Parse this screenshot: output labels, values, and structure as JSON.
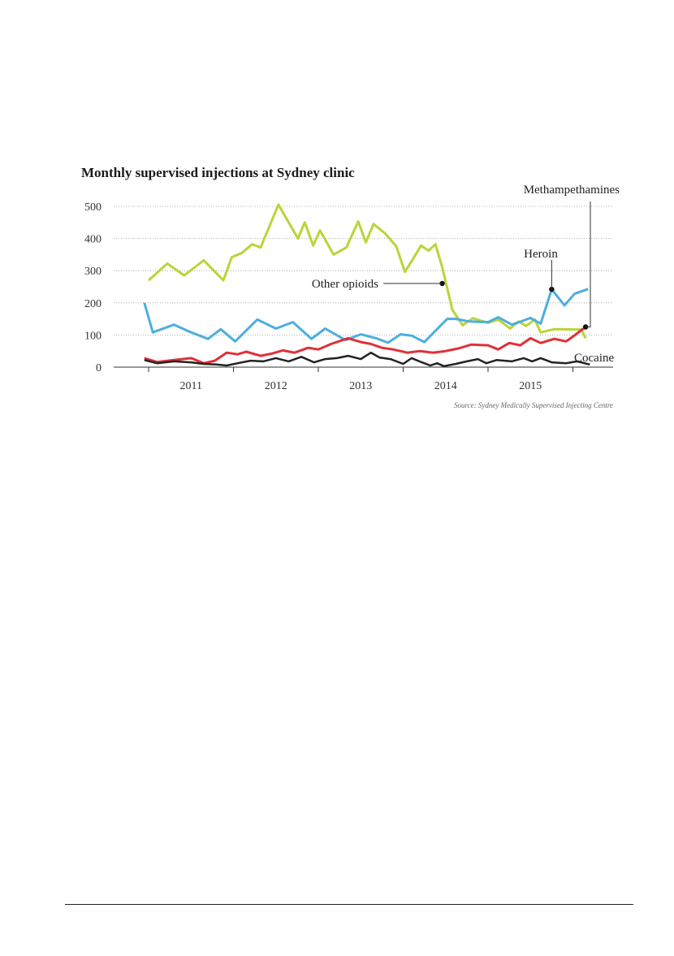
{
  "chart_data": {
    "type": "line",
    "title": "Monthly supervised injections at Sydney clinic",
    "source": "Source: Sydney Medically Supervised Injecting Centre",
    "ylim": [
      0,
      520
    ],
    "xlim": [
      2010.5,
      2016.0
    ],
    "yticks": [
      0,
      100,
      200,
      300,
      400,
      500
    ],
    "xticks": [
      {
        "label": "2011",
        "x": 2011.0
      },
      {
        "label": "2012",
        "x": 2012.0
      },
      {
        "label": "2013",
        "x": 2013.0
      },
      {
        "label": "2014",
        "x": 2014.0
      },
      {
        "label": "2015",
        "x": 2015.0
      }
    ],
    "grid": true,
    "series": [
      {
        "name": "Other opioids",
        "color": "#b9d538",
        "points": [
          [
            2010.5,
            270
          ],
          [
            2010.72,
            322
          ],
          [
            2010.92,
            285
          ],
          [
            2011.15,
            332
          ],
          [
            2011.38,
            270
          ],
          [
            2011.48,
            342
          ],
          [
            2011.6,
            355
          ],
          [
            2011.72,
            382
          ],
          [
            2011.82,
            372
          ],
          [
            2012.03,
            505
          ],
          [
            2012.26,
            400
          ],
          [
            2012.34,
            450
          ],
          [
            2012.44,
            378
          ],
          [
            2012.52,
            425
          ],
          [
            2012.68,
            350
          ],
          [
            2012.83,
            372
          ],
          [
            2012.97,
            453
          ],
          [
            2013.06,
            388
          ],
          [
            2013.15,
            445
          ],
          [
            2013.29,
            415
          ],
          [
            2013.42,
            375
          ],
          [
            2013.52,
            296
          ],
          [
            2013.62,
            338
          ],
          [
            2013.71,
            378
          ],
          [
            2013.8,
            362
          ],
          [
            2013.88,
            382
          ],
          [
            2013.96,
            310
          ],
          [
            2014.08,
            178
          ],
          [
            2014.2,
            130
          ],
          [
            2014.32,
            152
          ],
          [
            2014.5,
            138
          ],
          [
            2014.62,
            148
          ],
          [
            2014.76,
            120
          ],
          [
            2014.86,
            142
          ],
          [
            2014.95,
            128
          ],
          [
            2015.05,
            148
          ],
          [
            2015.12,
            108
          ],
          [
            2015.28,
            118
          ],
          [
            2015.6,
            117
          ],
          [
            2015.65,
            90
          ]
        ]
      },
      {
        "name": "Heroin",
        "color": "#4daedf",
        "points": [
          [
            2010.45,
            200
          ],
          [
            2010.55,
            108
          ],
          [
            2010.8,
            132
          ],
          [
            2011.0,
            108
          ],
          [
            2011.2,
            88
          ],
          [
            2011.35,
            118
          ],
          [
            2011.52,
            80
          ],
          [
            2011.78,
            148
          ],
          [
            2012.0,
            120
          ],
          [
            2012.2,
            140
          ],
          [
            2012.42,
            88
          ],
          [
            2012.58,
            120
          ],
          [
            2012.82,
            84
          ],
          [
            2013.0,
            102
          ],
          [
            2013.18,
            90
          ],
          [
            2013.32,
            76
          ],
          [
            2013.47,
            102
          ],
          [
            2013.6,
            98
          ],
          [
            2013.75,
            78
          ],
          [
            2014.02,
            150
          ],
          [
            2014.12,
            150
          ],
          [
            2014.28,
            142
          ],
          [
            2014.5,
            140
          ],
          [
            2014.62,
            155
          ],
          [
            2014.78,
            132
          ],
          [
            2014.9,
            143
          ],
          [
            2015.0,
            153
          ],
          [
            2015.12,
            135
          ],
          [
            2015.25,
            242
          ],
          [
            2015.4,
            192
          ],
          [
            2015.52,
            228
          ],
          [
            2015.68,
            243
          ]
        ]
      },
      {
        "name": "Methampethamines",
        "color": "#e03039",
        "points": [
          [
            2010.45,
            28
          ],
          [
            2010.6,
            16
          ],
          [
            2010.8,
            22
          ],
          [
            2011.0,
            28
          ],
          [
            2011.15,
            12
          ],
          [
            2011.28,
            20
          ],
          [
            2011.42,
            45
          ],
          [
            2011.55,
            40
          ],
          [
            2011.65,
            48
          ],
          [
            2011.82,
            35
          ],
          [
            2011.95,
            42
          ],
          [
            2012.08,
            52
          ],
          [
            2012.22,
            45
          ],
          [
            2012.38,
            60
          ],
          [
            2012.5,
            55
          ],
          [
            2012.65,
            72
          ],
          [
            2012.85,
            90
          ],
          [
            2013.0,
            78
          ],
          [
            2013.12,
            72
          ],
          [
            2013.25,
            60
          ],
          [
            2013.38,
            55
          ],
          [
            2013.55,
            45
          ],
          [
            2013.7,
            50
          ],
          [
            2013.85,
            45
          ],
          [
            2014.0,
            50
          ],
          [
            2014.15,
            58
          ],
          [
            2014.3,
            70
          ],
          [
            2014.5,
            68
          ],
          [
            2014.62,
            55
          ],
          [
            2014.75,
            75
          ],
          [
            2014.88,
            68
          ],
          [
            2015.0,
            90
          ],
          [
            2015.12,
            75
          ],
          [
            2015.28,
            88
          ],
          [
            2015.42,
            80
          ],
          [
            2015.5,
            95
          ],
          [
            2015.65,
            125
          ]
        ]
      },
      {
        "name": "Cocaine",
        "color": "#222222",
        "points": [
          [
            2010.45,
            22
          ],
          [
            2010.6,
            12
          ],
          [
            2010.8,
            18
          ],
          [
            2011.0,
            15
          ],
          [
            2011.15,
            10
          ],
          [
            2011.3,
            8
          ],
          [
            2011.42,
            5
          ],
          [
            2011.55,
            12
          ],
          [
            2011.7,
            20
          ],
          [
            2011.85,
            18
          ],
          [
            2012.0,
            28
          ],
          [
            2012.15,
            18
          ],
          [
            2012.3,
            32
          ],
          [
            2012.45,
            15
          ],
          [
            2012.58,
            25
          ],
          [
            2012.72,
            28
          ],
          [
            2012.85,
            35
          ],
          [
            2013.0,
            25
          ],
          [
            2013.12,
            45
          ],
          [
            2013.22,
            30
          ],
          [
            2013.35,
            25
          ],
          [
            2013.5,
            10
          ],
          [
            2013.6,
            28
          ],
          [
            2013.72,
            15
          ],
          [
            2013.82,
            5
          ],
          [
            2013.9,
            12
          ],
          [
            2013.98,
            3
          ],
          [
            2014.12,
            10
          ],
          [
            2014.25,
            18
          ],
          [
            2014.38,
            25
          ],
          [
            2014.48,
            12
          ],
          [
            2014.6,
            22
          ],
          [
            2014.78,
            18
          ],
          [
            2014.92,
            28
          ],
          [
            2015.02,
            18
          ],
          [
            2015.12,
            28
          ],
          [
            2015.25,
            15
          ],
          [
            2015.42,
            12
          ],
          [
            2015.55,
            18
          ],
          [
            2015.7,
            8
          ]
        ]
      }
    ],
    "annotations": [
      {
        "label": "Methampethamines",
        "series": 2,
        "point": [
          2015.65,
          125
        ]
      },
      {
        "label": "Heroin",
        "series": 1,
        "point": [
          2015.25,
          242
        ]
      },
      {
        "label": "Other opioids",
        "series": 0,
        "point": [
          2013.96,
          260
        ]
      },
      {
        "label": "Cocaine",
        "series": 3
      }
    ]
  }
}
